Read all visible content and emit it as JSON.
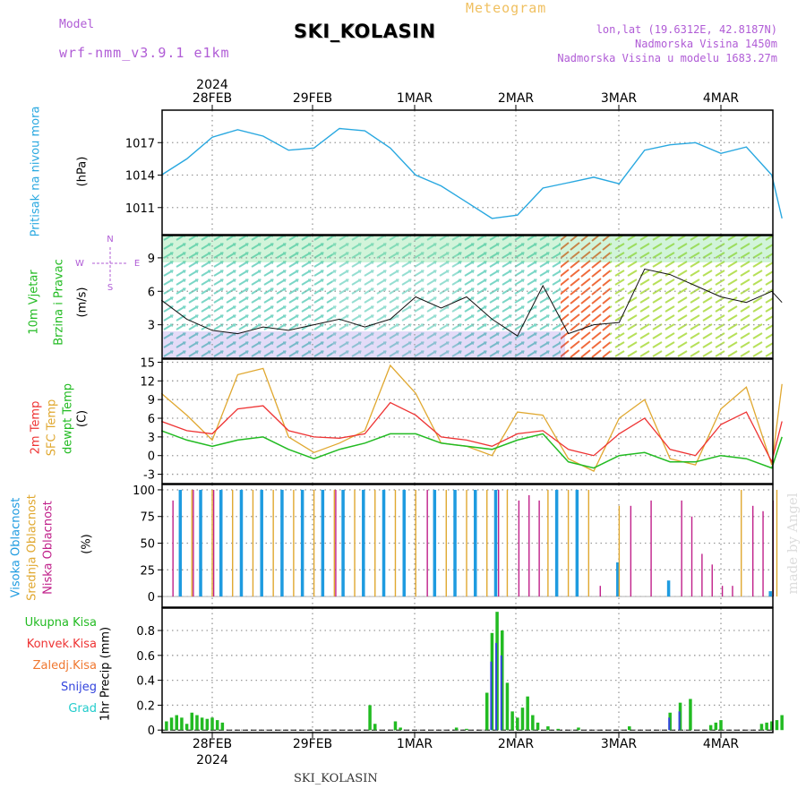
{
  "header": {
    "model_label": "Model",
    "model_name": "wrf-nmm_v3.9.1 e1km",
    "station": "SKI_KOLASIN",
    "meteogram": "Meteogram",
    "lonlat": "lon,lat (19.6312E, 42.8187N)",
    "elev": "Nadmorska Visina 1450m",
    "elev_model": "Nadmorska Visina u modelu 1683.27m"
  },
  "footer": {
    "station": "SKI_KOLASIN",
    "credit": "made by Angel"
  },
  "axis": {
    "year_top": "2024",
    "year_bottom": "2024",
    "dates": [
      "28FEB",
      "29FEB",
      "1MAR",
      "2MAR",
      "3MAR",
      "4MAR"
    ]
  },
  "panels": {
    "pressure": {
      "title": "Pritisak na nivou mora",
      "unit": "(hPa)",
      "ticks": [
        "1017",
        "1014",
        "1011"
      ]
    },
    "wind": {
      "title1": "10m Vjetar",
      "title2": "Brzina i Pravac",
      "unit": "(m/s)",
      "ticks": [
        "9",
        "6",
        "3"
      ],
      "compass": [
        "N",
        "W",
        "E",
        "S"
      ]
    },
    "temp": {
      "label1": "2m Temp",
      "label2": "SFC Temp",
      "label3": "dewpt Temp",
      "unit": "(C)",
      "ticks": [
        "15",
        "12",
        "9",
        "6",
        "3",
        "0",
        "-3"
      ]
    },
    "cloud": {
      "label1": "Visoka Oblacnost",
      "label2": "Srednja Oblacnost",
      "label3": "Niska Oblacnost",
      "unit": "(%)",
      "ticks": [
        "100",
        "75",
        "50",
        "25",
        "0"
      ]
    },
    "precip": {
      "labels": [
        "Ukupna Kisa",
        "Konvek.Kisa",
        "Zaledj.Kisa",
        "Snijeg",
        "Grad"
      ],
      "unit": "1hr Precip (mm)",
      "ticks": [
        "0.8",
        "0.6",
        "0.4",
        "0.2",
        "0"
      ]
    }
  },
  "colors": {
    "pressure": "#29a8e0",
    "temp2m": "#ee3333",
    "sfc": "#e0a830",
    "dewpt": "#22bb22",
    "cloud_high": "#1e9be0",
    "cloud_mid": "#e0a830",
    "cloud_low": "#c0208a",
    "precip_total": "#22bb22",
    "precip_conv": "#ee3333",
    "precip_frz": "#f07830",
    "precip_snow": "#3344dd",
    "precip_grad": "#22cccc",
    "purple": "#b05cd6"
  },
  "chart_data": [
    {
      "type": "line",
      "title": "Pritisak na nivou mora",
      "ylabel": "(hPa)",
      "ylim": [
        1008.5,
        1020
      ],
      "x_days": [
        0,
        0.25,
        0.5,
        0.75,
        1,
        1.25,
        1.5,
        1.75,
        2,
        2.25,
        2.5,
        2.75,
        3,
        3.25,
        3.5,
        3.75,
        4,
        4.25,
        4.5,
        4.75,
        5,
        5.25,
        5.5,
        5.75,
        6,
        6.1
      ],
      "series": [
        {
          "values": [
            1014,
            1015.5,
            1017.5,
            1018.2,
            1017.6,
            1016.3,
            1016.5,
            1018.3,
            1018.1,
            1016.5,
            1014.0,
            1013.0,
            1011.5,
            1010.0,
            1010.3,
            1012.8,
            1013.3,
            1013.8,
            1013.2,
            1016.3,
            1016.8,
            1017.0,
            1016.0,
            1016.6,
            1014.0,
            1010.0
          ]
        }
      ]
    },
    {
      "type": "line",
      "title": "10m Vjetar Brzina i Pravac",
      "ylabel": "(m/s)",
      "ylim": [
        0,
        11
      ],
      "x_days": [
        0,
        0.25,
        0.5,
        0.75,
        1,
        1.25,
        1.5,
        1.75,
        2,
        2.25,
        2.5,
        2.75,
        3,
        3.25,
        3.5,
        3.75,
        4,
        4.25,
        4.5,
        4.75,
        5,
        5.25,
        5.5,
        5.75,
        6,
        6.1
      ],
      "series": [
        {
          "values": [
            5.2,
            3.5,
            2.5,
            2.2,
            2.8,
            2.5,
            3.0,
            3.5,
            2.8,
            3.5,
            5.5,
            4.5,
            5.5,
            3.5,
            2.0,
            6.5,
            2.2,
            3.0,
            3.2,
            8.0,
            7.5,
            6.5,
            5.5,
            5.0,
            6.0,
            5.0
          ]
        }
      ]
    },
    {
      "type": "line",
      "title": "Temperatura",
      "ylabel": "(C)",
      "ylim": [
        -4.5,
        15.5
      ],
      "x_days": [
        0,
        0.25,
        0.5,
        0.75,
        1,
        1.25,
        1.5,
        1.75,
        2,
        2.25,
        2.5,
        2.75,
        3,
        3.25,
        3.5,
        3.75,
        4,
        4.25,
        4.5,
        4.75,
        5,
        5.25,
        5.5,
        5.75,
        6,
        6.1
      ],
      "series": [
        {
          "name": "2m Temp",
          "values": [
            5.5,
            4.0,
            3.5,
            7.5,
            8.0,
            4.0,
            3.0,
            2.8,
            3.5,
            8.5,
            6.5,
            3.0,
            2.5,
            1.5,
            3.5,
            4.0,
            1.0,
            0.0,
            3.5,
            6.0,
            1.0,
            0.0,
            5.0,
            7.0,
            -1.0,
            5.5
          ]
        },
        {
          "name": "SFC Temp",
          "values": [
            10.0,
            6.5,
            2.5,
            13.0,
            14.0,
            3.0,
            0.5,
            2.0,
            4.0,
            14.5,
            10.0,
            2.0,
            1.5,
            0.0,
            7.0,
            6.5,
            -0.5,
            -2.5,
            6.0,
            9.0,
            -0.5,
            -1.5,
            7.5,
            11.0,
            -1.5,
            11.5
          ]
        },
        {
          "name": "dewpt Temp",
          "values": [
            4.0,
            2.5,
            1.5,
            2.5,
            3.0,
            1.0,
            -0.5,
            1.0,
            2.0,
            3.5,
            3.5,
            2.0,
            1.5,
            1.0,
            2.5,
            3.5,
            -1.0,
            -2.0,
            0.0,
            0.5,
            -1.0,
            -1.0,
            0.0,
            -0.5,
            -2.0,
            3.0
          ]
        }
      ]
    },
    {
      "type": "bar",
      "title": "Oblacnost",
      "ylabel": "(%)",
      "ylim": [
        0,
        100
      ],
      "series": [
        {
          "name": "Visoka Oblacnost",
          "x_days": [
            0.2,
            0.4,
            0.6,
            0.8,
            1.0,
            1.2,
            1.4,
            1.6,
            1.8,
            2.0,
            2.2,
            2.4,
            2.7,
            2.9,
            3.1,
            3.3,
            3.9,
            4.1,
            4.5,
            5.0,
            6.0
          ],
          "values": [
            100,
            100,
            100,
            100,
            100,
            100,
            100,
            100,
            100,
            100,
            100,
            100,
            100,
            100,
            100,
            100,
            100,
            100,
            32,
            15,
            5
          ]
        },
        {
          "name": "Srednja Oblacnost",
          "x_days": [
            0.3,
            0.5,
            0.7,
            0.9,
            1.1,
            1.3,
            1.5,
            1.7,
            1.9,
            2.1,
            2.3,
            2.5,
            2.8,
            3.0,
            3.2,
            3.4,
            3.8,
            4.0,
            4.2,
            4.5,
            5.7,
            6.05
          ],
          "values": [
            100,
            100,
            100,
            100,
            100,
            100,
            100,
            100,
            100,
            100,
            100,
            100,
            100,
            100,
            100,
            100,
            100,
            100,
            100,
            85,
            100,
            100
          ]
        },
        {
          "name": "Niska Oblacnost",
          "x_days": [
            0.1,
            0.3,
            0.5,
            1.7,
            2.6,
            3.3,
            3.5,
            3.6,
            3.7,
            4.3,
            4.6,
            4.8,
            5.1,
            5.2,
            5.3,
            5.4,
            5.5,
            5.6,
            5.8,
            5.9,
            6.0
          ],
          "values": [
            90,
            100,
            100,
            100,
            100,
            100,
            90,
            95,
            90,
            10,
            85,
            90,
            90,
            75,
            40,
            30,
            10,
            10,
            85,
            80,
            90
          ]
        }
      ]
    },
    {
      "type": "bar",
      "title": "1hr Precip",
      "ylabel": "1hr Precip (mm)",
      "ylim": [
        0,
        0.95
      ],
      "series": [
        {
          "name": "Ukupna Kisa",
          "x_days": [
            0.05,
            0.1,
            0.15,
            0.2,
            0.25,
            0.3,
            0.35,
            0.4,
            0.45,
            0.5,
            0.55,
            0.6,
            2.05,
            2.1,
            2.3,
            2.35,
            2.9,
            3.0,
            3.2,
            3.25,
            3.3,
            3.35,
            3.4,
            3.45,
            3.5,
            3.55,
            3.6,
            3.65,
            3.7,
            3.8,
            3.9,
            4.1,
            4.6,
            5.0,
            5.1,
            5.2,
            5.4,
            5.45,
            5.5,
            5.9,
            5.95,
            6.0,
            6.05,
            6.1
          ],
          "values": [
            0.07,
            0.1,
            0.12,
            0.1,
            0.05,
            0.14,
            0.12,
            0.1,
            0.09,
            0.1,
            0.08,
            0.06,
            0.2,
            0.05,
            0.07,
            0.02,
            0.02,
            0.01,
            0.3,
            0.78,
            0.95,
            0.8,
            0.38,
            0.15,
            0.1,
            0.18,
            0.27,
            0.12,
            0.06,
            0.03,
            0.01,
            0.02,
            0.03,
            0.14,
            0.22,
            0.25,
            0.04,
            0.06,
            0.08,
            0.05,
            0.06,
            0.07,
            0.08,
            0.12
          ]
        },
        {
          "name": "Snijeg",
          "x_days": [
            3.25,
            3.3,
            3.35,
            5.0,
            5.1
          ],
          "values": [
            0.55,
            0.7,
            0.6,
            0.1,
            0.15
          ]
        }
      ]
    }
  ]
}
